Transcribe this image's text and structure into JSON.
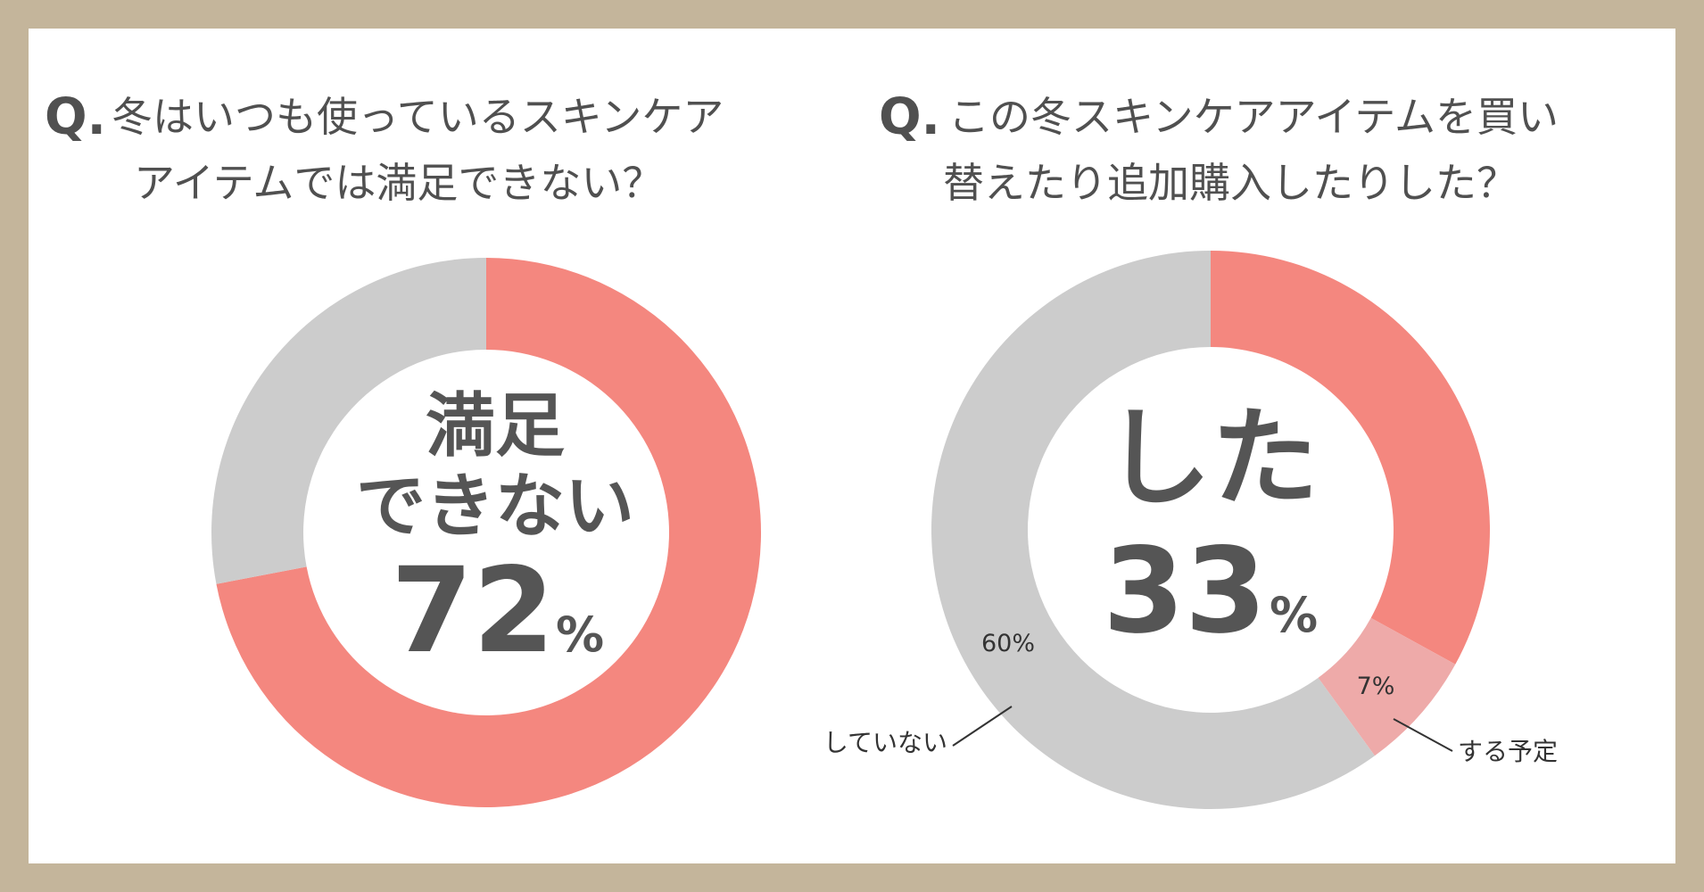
{
  "colors": {
    "frame": "#c4b59b",
    "accent": "#f4877f",
    "accent_light": "#eeaaa9",
    "neutral": "#cccccc",
    "text": "#555555"
  },
  "charts": {
    "left": {
      "q_mark": "Q.",
      "question_line1": "冬はいつも使っているスキンケア",
      "question_line2": "アイテムでは満足できない？",
      "center_line1": "満足",
      "center_line2": "できない",
      "center_value": "72",
      "center_unit": "%"
    },
    "right": {
      "q_mark": "Q.",
      "question_line1": "この冬スキンケアアイテムを買い",
      "question_line2": "替えたり追加購入したりした？",
      "center_line1": "した",
      "center_value": "33",
      "center_unit": "%",
      "label_7": "7%",
      "label_60": "60%",
      "callout_planned": "する予定",
      "callout_no": "していない"
    }
  },
  "chart_data": [
    {
      "type": "pie",
      "title": "冬はいつも使っているスキンケアアイテムでは満足できない？",
      "series": [
        {
          "name": "満足できない",
          "value": 72,
          "color": "#f4877f"
        },
        {
          "name": "",
          "value": 28,
          "color": "#cccccc"
        }
      ]
    },
    {
      "type": "pie",
      "title": "この冬スキンケアアイテムを買い替えたり追加購入したりした？",
      "series": [
        {
          "name": "した",
          "value": 33,
          "color": "#f4877f"
        },
        {
          "name": "する予定",
          "value": 7,
          "color": "#eeaaa9"
        },
        {
          "name": "していない",
          "value": 60,
          "color": "#cccccc"
        }
      ]
    }
  ]
}
